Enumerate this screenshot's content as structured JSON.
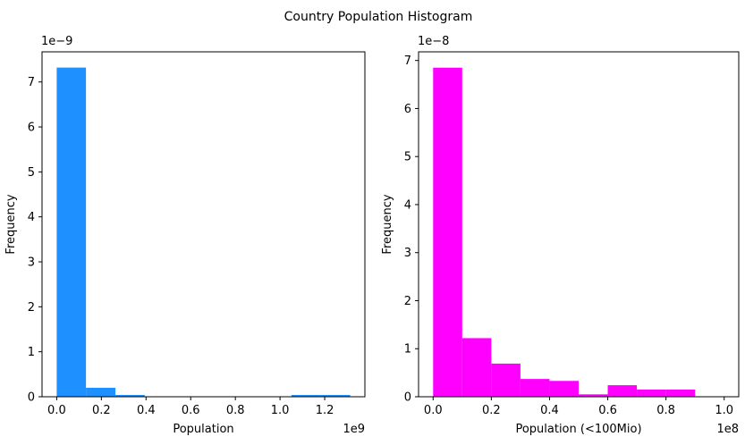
{
  "figure_title": "Country Population Histogram",
  "chart_data": [
    {
      "type": "histogram",
      "color": "#1E90FF",
      "xlabel": "Population",
      "ylabel": "Frequency",
      "x_offset_label": "1e9",
      "y_offset_label": "1e−9",
      "xlim": [
        -0.0657,
        1.38
      ],
      "ylim": [
        0,
        7.67
      ],
      "xticks": [
        0.0,
        0.2,
        0.4,
        0.6,
        0.8,
        1.0,
        1.2
      ],
      "xtick_labels": [
        "0.0",
        "0.2",
        "0.4",
        "0.6",
        "0.8",
        "1.0",
        "1.2"
      ],
      "yticks": [
        0,
        1,
        2,
        3,
        4,
        5,
        6,
        7
      ],
      "ytick_labels": [
        "0",
        "1",
        "2",
        "3",
        "4",
        "5",
        "6",
        "7"
      ],
      "bins": [
        {
          "x0": 0.0,
          "x1": 0.131,
          "value": 7.32
        },
        {
          "x0": 0.131,
          "x1": 0.263,
          "value": 0.2
        },
        {
          "x0": 0.263,
          "x1": 0.394,
          "value": 0.04
        },
        {
          "x0": 0.394,
          "x1": 0.526,
          "value": 0.0
        },
        {
          "x0": 0.526,
          "x1": 0.657,
          "value": 0.0
        },
        {
          "x0": 0.657,
          "x1": 0.788,
          "value": 0.0
        },
        {
          "x0": 0.788,
          "x1": 0.92,
          "value": 0.0
        },
        {
          "x0": 0.92,
          "x1": 1.051,
          "value": 0.0
        },
        {
          "x0": 1.051,
          "x1": 1.183,
          "value": 0.04
        },
        {
          "x0": 1.183,
          "x1": 1.314,
          "value": 0.04
        }
      ]
    },
    {
      "type": "histogram",
      "color": "#FF00FF",
      "xlabel": "Population (<100Mio)",
      "ylabel": "Frequency",
      "x_offset_label": "1e8",
      "y_offset_label": "1e−8",
      "xlim": [
        -0.05,
        1.05
      ],
      "ylim": [
        0,
        7.18
      ],
      "xticks": [
        0.0,
        0.2,
        0.4,
        0.6,
        0.8,
        1.0
      ],
      "xtick_labels": [
        "0.0",
        "0.2",
        "0.4",
        "0.6",
        "0.8",
        "1.0"
      ],
      "yticks": [
        0,
        1,
        2,
        3,
        4,
        5,
        6,
        7
      ],
      "ytick_labels": [
        "0",
        "1",
        "2",
        "3",
        "4",
        "5",
        "6",
        "7"
      ],
      "bins": [
        {
          "x0": 0.0,
          "x1": 0.1,
          "value": 6.85
        },
        {
          "x0": 0.1,
          "x1": 0.2,
          "value": 1.22
        },
        {
          "x0": 0.2,
          "x1": 0.3,
          "value": 0.69
        },
        {
          "x0": 0.3,
          "x1": 0.4,
          "value": 0.37
        },
        {
          "x0": 0.4,
          "x1": 0.5,
          "value": 0.33
        },
        {
          "x0": 0.5,
          "x1": 0.6,
          "value": 0.05
        },
        {
          "x0": 0.6,
          "x1": 0.7,
          "value": 0.24
        },
        {
          "x0": 0.7,
          "x1": 0.8,
          "value": 0.15
        },
        {
          "x0": 0.8,
          "x1": 0.9,
          "value": 0.15
        },
        {
          "x0": 0.9,
          "x1": 1.0,
          "value": 0.0
        }
      ]
    }
  ]
}
